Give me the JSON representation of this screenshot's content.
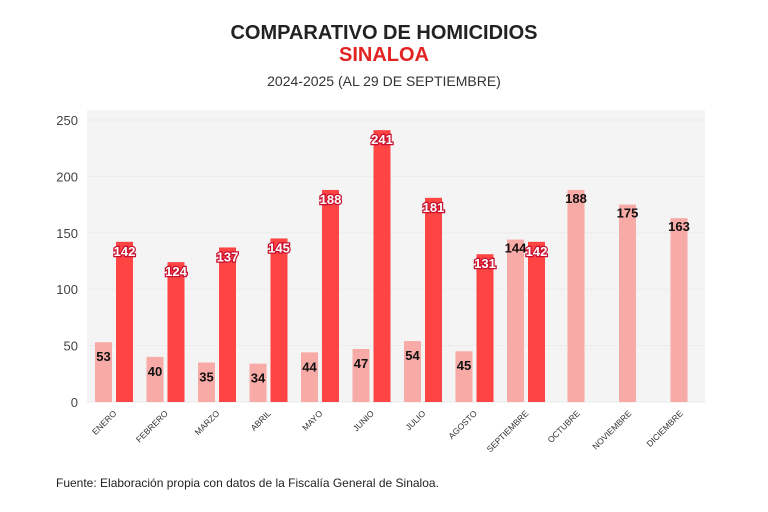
{
  "chart_data": {
    "type": "bar",
    "title": "COMPARATIVO DE HOMICIDIOS",
    "subtitle": "SINALOA",
    "period": "2024-2025 (AL 29 DE SEPTIEMBRE)",
    "categories": [
      "ENERO",
      "FEBRERO",
      "MARZO",
      "ABRIL",
      "MAYO",
      "JUNIO",
      "JULIO",
      "AGOSTO",
      "SEPTIEMBRE",
      "OCTUBRE",
      "NOVIEMBRE",
      "DICIEMBRE"
    ],
    "series": [
      {
        "values": [
          53,
          40,
          35,
          34,
          44,
          47,
          54,
          45,
          144,
          188,
          175,
          163
        ],
        "color": "#f8aaa6"
      },
      {
        "values": [
          142,
          124,
          137,
          145,
          188,
          241,
          181,
          131,
          142,
          null,
          null,
          null
        ],
        "color": "#ff4444"
      }
    ],
    "yticks": [
      0,
      50,
      100,
      150,
      200,
      250
    ],
    "ylim": [
      0,
      250
    ],
    "grid": true,
    "legend": "none",
    "xlabel": "",
    "ylabel": ""
  },
  "footer": {
    "source": "Fuente: Elaboración propia con datos de la Fiscalía General de Sinaloa."
  }
}
